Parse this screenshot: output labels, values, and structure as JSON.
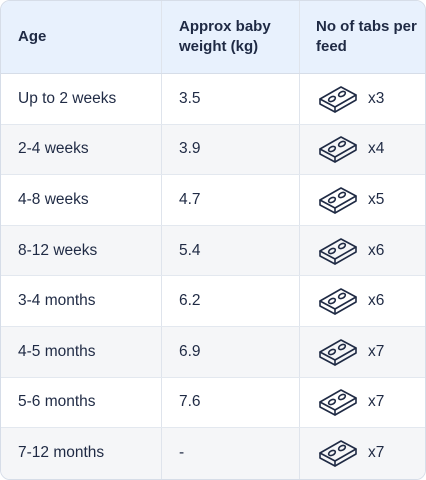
{
  "header": {
    "age": "Age",
    "weight": "Approx baby weight (kg)",
    "tabs": "No of tabs per feed"
  },
  "rows": [
    {
      "age": "Up to 2 weeks",
      "weight": "3.5",
      "tabs": "x3"
    },
    {
      "age": "2-4 weeks",
      "weight": "3.9",
      "tabs": "x4"
    },
    {
      "age": "4-8 weeks",
      "weight": "4.7",
      "tabs": "x5"
    },
    {
      "age": "8-12 weeks",
      "weight": "5.4",
      "tabs": "x6"
    },
    {
      "age": "3-4 months",
      "weight": "6.2",
      "tabs": "x6"
    },
    {
      "age": "4-5 months",
      "weight": "6.9",
      "tabs": "x7"
    },
    {
      "age": "5-6 months",
      "weight": "7.6",
      "tabs": "x7"
    },
    {
      "age": "7-12 months",
      "weight": "-",
      "tabs": "x7"
    }
  ],
  "icon": "formula-tab-icon",
  "colors": {
    "header_bg": "#e8f1fd",
    "alt_row_bg": "#f5f6f8",
    "text": "#1f2a44"
  }
}
